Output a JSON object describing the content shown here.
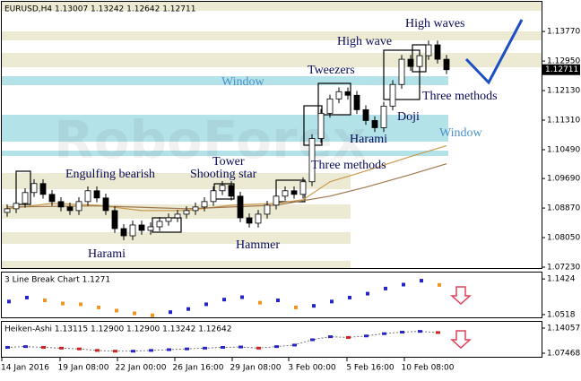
{
  "chart_data": [
    {
      "type": "candlestick",
      "title": "EURUSD,H4 1.13007 1.13242 1.12642 1.12711",
      "watermark": "RoboForex",
      "ylim": [
        1.0718,
        1.1457
      ],
      "yticks": [
        {
          "value": 1.1377,
          "label": "1.13770"
        },
        {
          "value": 1.1295,
          "label": "1.12950"
        },
        {
          "value": 1.1213,
          "label": "1.12130"
        },
        {
          "value": 1.1131,
          "label": "1.11310"
        },
        {
          "value": 1.1049,
          "label": "1.10490"
        },
        {
          "value": 1.0969,
          "label": "1.09690"
        },
        {
          "value": 1.0887,
          "label": "1.08870"
        },
        {
          "value": 1.0805,
          "label": "1.08050"
        },
        {
          "value": 1.0723,
          "label": "1.07230"
        }
      ],
      "last_price": {
        "value": 1.12711,
        "label": "1.12711"
      },
      "x_labels": [
        "14 Jan 2016",
        "19 Jan 08:00",
        "22 Jan 00:00",
        "26 Jan 16:00",
        "29 Jan 08:00",
        "3 Feb 00:00",
        "5 Feb 16:00",
        "10 Feb 08:00"
      ],
      "candles": [
        [
          1.0875,
          1.0897,
          1.0863,
          1.0885
        ],
        [
          1.0885,
          1.0912,
          1.0873,
          1.09
        ],
        [
          1.09,
          1.0942,
          1.0888,
          1.093
        ],
        [
          1.093,
          1.0967,
          1.0918,
          1.0955
        ],
        [
          1.0955,
          1.0967,
          1.0913,
          1.0925
        ],
        [
          1.0925,
          1.0937,
          1.0893,
          1.0905
        ],
        [
          1.0905,
          1.0917,
          1.0878,
          1.089
        ],
        [
          1.089,
          1.0902,
          1.0868,
          1.088
        ],
        [
          1.088,
          1.0917,
          1.0868,
          1.0905
        ],
        [
          1.0905,
          1.0947,
          1.0893,
          1.0935
        ],
        [
          1.0935,
          1.0947,
          1.0903,
          1.0915
        ],
        [
          1.0915,
          1.0927,
          1.0868,
          1.088
        ],
        [
          1.088,
          1.0892,
          1.0818,
          1.083
        ],
        [
          1.083,
          1.0842,
          1.0798,
          1.081
        ],
        [
          1.081,
          1.0852,
          1.0798,
          1.084
        ],
        [
          1.084,
          1.0852,
          1.0813,
          1.0825
        ],
        [
          1.0825,
          1.0847,
          1.0813,
          1.0835
        ],
        [
          1.0835,
          1.0862,
          1.0823,
          1.085
        ],
        [
          1.085,
          1.0872,
          1.0838,
          1.086
        ],
        [
          1.086,
          1.0882,
          1.0848,
          1.087
        ],
        [
          1.087,
          1.0892,
          1.0858,
          1.088
        ],
        [
          1.088,
          1.0902,
          1.0868,
          1.089
        ],
        [
          1.089,
          1.0917,
          1.0878,
          1.0905
        ],
        [
          1.0905,
          1.0947,
          1.0893,
          1.0935
        ],
        [
          1.0935,
          1.0962,
          1.0923,
          1.095
        ],
        [
          1.095,
          1.0962,
          1.0908,
          1.092
        ],
        [
          1.092,
          1.0932,
          1.0848,
          1.086
        ],
        [
          1.086,
          1.0872,
          1.0833,
          1.0845
        ],
        [
          1.0845,
          1.0882,
          1.0833,
          1.087
        ],
        [
          1.087,
          1.0907,
          1.0858,
          1.0895
        ],
        [
          1.0895,
          1.0932,
          1.0883,
          1.092
        ],
        [
          1.092,
          1.0947,
          1.0908,
          1.0935
        ],
        [
          1.0935,
          1.0947,
          1.0913,
          1.0925
        ],
        [
          1.0925,
          1.0972,
          1.0913,
          1.096
        ],
        [
          1.096,
          1.1092,
          1.0948,
          1.108
        ],
        [
          1.108,
          1.1162,
          1.1068,
          1.115
        ],
        [
          1.115,
          1.1202,
          1.1138,
          1.119
        ],
        [
          1.119,
          1.1222,
          1.1178,
          1.121
        ],
        [
          1.121,
          1.1222,
          1.1188,
          1.12
        ],
        [
          1.12,
          1.1212,
          1.1148,
          1.116
        ],
        [
          1.116,
          1.1172,
          1.1118,
          1.113
        ],
        [
          1.113,
          1.1142,
          1.1098,
          1.111
        ],
        [
          1.111,
          1.1182,
          1.1098,
          1.117
        ],
        [
          1.117,
          1.1242,
          1.1158,
          1.123
        ],
        [
          1.123,
          1.1312,
          1.1218,
          1.13
        ],
        [
          1.13,
          1.1312,
          1.1268,
          1.128
        ],
        [
          1.128,
          1.1322,
          1.1268,
          1.131
        ],
        [
          1.131,
          1.1352,
          1.1298,
          1.134
        ],
        [
          1.134,
          1.1352,
          1.1288,
          1.13
        ],
        [
          1.13,
          1.1312,
          1.1259,
          1.1271
        ]
      ],
      "series": [
        {
          "color": "#c89a50",
          "x": [
            0,
            5,
            10,
            15,
            20,
            25,
            30,
            33,
            36,
            40,
            45,
            49
          ],
          "values": [
            1.0885,
            1.09,
            1.0895,
            1.088,
            1.088,
            1.0895,
            1.09,
            1.091,
            1.096,
            1.099,
            1.103,
            1.106
          ]
        },
        {
          "color": "#a07850",
          "x": [
            0,
            10,
            20,
            30,
            36,
            40,
            45,
            49
          ],
          "values": [
            1.089,
            1.0893,
            1.0885,
            1.0895,
            1.092,
            1.0945,
            1.098,
            1.101
          ]
        }
      ],
      "annotations": [
        "High waves",
        "High wave",
        "Tweezers",
        "Window",
        "Three methods",
        "Doji",
        "Window",
        "Harami",
        "Tower",
        "Engulfing bearish",
        "Shooting star",
        "Three methods",
        "Hammer",
        "Harami"
      ]
    },
    {
      "type": "dots",
      "title": "3 Line Break Chart 1.1271",
      "ylim": [
        1.0425,
        1.161
      ],
      "yticks": [
        1.1424,
        1.0518
      ],
      "values": [
        1.085,
        1.095,
        1.088,
        1.08,
        1.078,
        1.07,
        1.062,
        1.055,
        1.05,
        1.058,
        1.066,
        1.078,
        1.09,
        1.096,
        1.082,
        1.088,
        1.07,
        1.074,
        1.085,
        1.095,
        1.105,
        1.118,
        1.128,
        1.138,
        1.1271
      ]
    },
    {
      "type": "line-dots",
      "title": "Heiken-Ashi 1.13115 1.12900 1.12900 1.13242 1.12642",
      "ylim": [
        1.0323,
        1.1594
      ],
      "yticks": [
        1.14057,
        1.07468
      ],
      "values": [
        1.09,
        1.092,
        1.09,
        1.088,
        1.086,
        1.082,
        1.08,
        1.08,
        1.082,
        1.084,
        1.086,
        1.088,
        1.09,
        1.091,
        1.088,
        1.092,
        1.096,
        1.11,
        1.118,
        1.116,
        1.12,
        1.126,
        1.13,
        1.132,
        1.129
      ]
    }
  ]
}
